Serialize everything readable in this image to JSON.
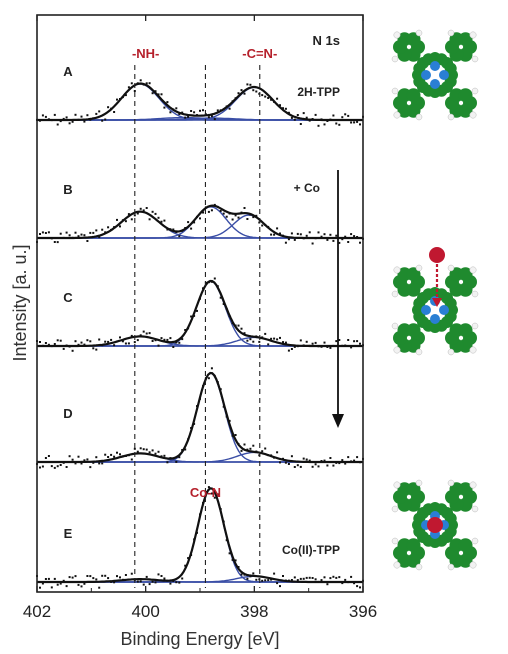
{
  "chart_data": {
    "type": "line",
    "title": "N 1s",
    "xlabel": "Binding Energy [eV]",
    "ylabel": "Intensity [a. u.]",
    "xlim": [
      402,
      396
    ],
    "x_reversed": true,
    "x_ticks": [
      "402",
      "400",
      "398",
      "396"
    ],
    "reference_lines_ev": [
      400.2,
      398.9,
      397.9
    ],
    "peak_labels": [
      {
        "text": "-NH-",
        "x": 400.0,
        "panel": "A",
        "color": "#b5202b"
      },
      {
        "text": "-C=N-",
        "x": 397.9,
        "panel": "A",
        "color": "#b5202b"
      },
      {
        "text": "Co-N",
        "x": 398.9,
        "panel": "E",
        "color": "#b5202b"
      }
    ],
    "panels": [
      {
        "label": "A",
        "annotation": "2H-TPP",
        "components": [
          {
            "center": 400.1,
            "height": 0.75,
            "width": 0.55
          },
          {
            "center": 398.0,
            "height": 0.68,
            "width": 0.55
          },
          {
            "center": 399.3,
            "height": 0.05,
            "width": 0.7
          },
          {
            "center": 398.8,
            "height": 0.04,
            "width": 0.7
          }
        ]
      },
      {
        "label": "B",
        "annotation": "+ Co",
        "components": [
          {
            "center": 400.1,
            "height": 0.55,
            "width": 0.55
          },
          {
            "center": 398.8,
            "height": 0.65,
            "width": 0.45
          },
          {
            "center": 398.1,
            "height": 0.48,
            "width": 0.45
          }
        ]
      },
      {
        "label": "C",
        "annotation": "",
        "components": [
          {
            "center": 400.1,
            "height": 0.2,
            "width": 0.55
          },
          {
            "center": 398.8,
            "height": 1.35,
            "width": 0.42
          },
          {
            "center": 398.0,
            "height": 0.18,
            "width": 0.5
          }
        ]
      },
      {
        "label": "D",
        "annotation": "",
        "components": [
          {
            "center": 400.1,
            "height": 0.18,
            "width": 0.55
          },
          {
            "center": 398.8,
            "height": 1.85,
            "width": 0.4
          },
          {
            "center": 398.0,
            "height": 0.2,
            "width": 0.5
          }
        ]
      },
      {
        "label": "E",
        "annotation": "Co(II)-TPP",
        "components": [
          {
            "center": 400.1,
            "height": 0.06,
            "width": 0.55
          },
          {
            "center": 398.8,
            "height": 1.95,
            "width": 0.38
          },
          {
            "center": 398.0,
            "height": 0.12,
            "width": 0.5
          }
        ]
      }
    ],
    "arrow_annotation": "+ Co",
    "colors": {
      "fit": "#111111",
      "components": "#3a4ea6",
      "reference_line": "#222222",
      "label_red": "#b5202b",
      "molecule_green": "#1f8a2e",
      "nitrogen_blue": "#2a7fd4",
      "cobalt_red": "#c01830"
    }
  },
  "molecules": [
    {
      "name": "2H-TPP",
      "metal": false,
      "arrow": false
    },
    {
      "name": "+Co",
      "metal": false,
      "arrow": true
    },
    {
      "name": "Co(II)-TPP",
      "metal": true,
      "arrow": false
    }
  ]
}
